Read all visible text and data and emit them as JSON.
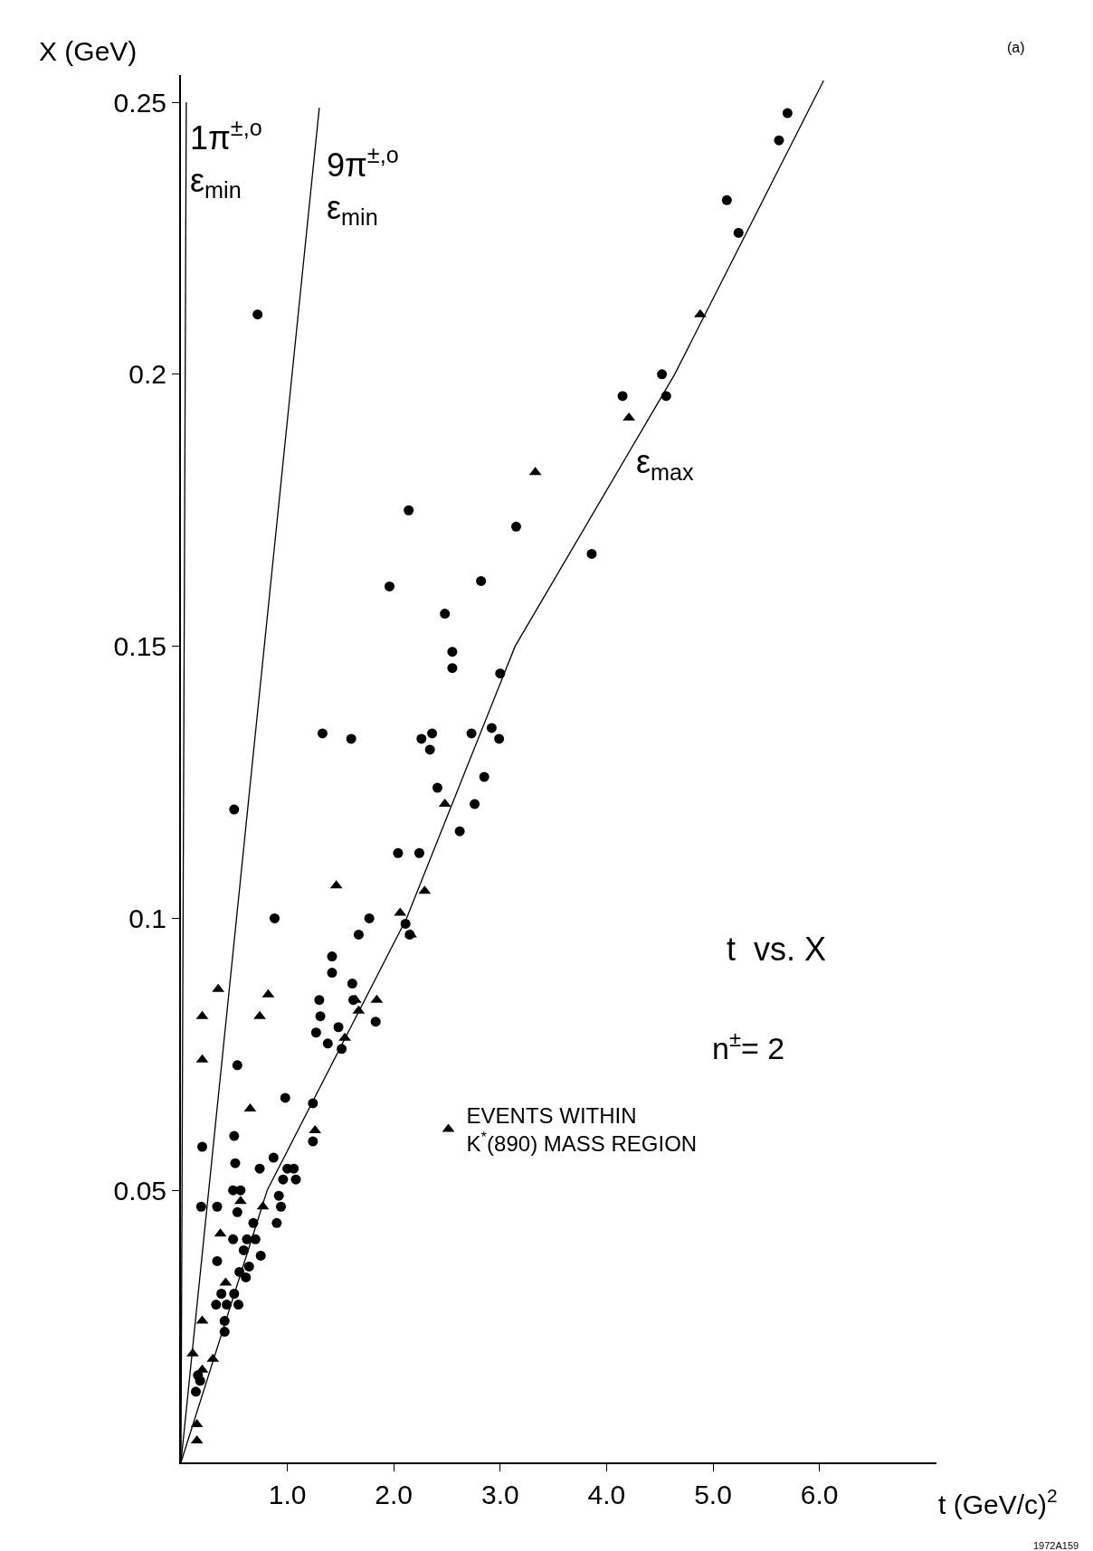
{
  "chart_data": {
    "type": "scatter",
    "xlabel": "t (GeV/c)$^{2}$",
    "ylabel": "X (GeV)",
    "xlim": [
      0,
      7.1
    ],
    "ylim": [
      0,
      0.255
    ],
    "xticks": [
      {
        "value": 1,
        "label": "1.0"
      },
      {
        "value": 2,
        "label": "2.0"
      },
      {
        "value": 3,
        "label": "3.0"
      },
      {
        "value": 4,
        "label": "4.0"
      },
      {
        "value": 5,
        "label": "5.0"
      },
      {
        "value": 6,
        "label": "6.0"
      }
    ],
    "yticks": [
      0.05,
      0.1,
      0.15,
      0.2,
      0.25
    ],
    "legend": "right",
    "series": [
      {
        "marker": "circle",
        "color": "#000000",
        "x": [
          5.24,
          5.13,
          5.7,
          5.62,
          4.15,
          4.52,
          4.56,
          3.86,
          3.15,
          2.14,
          1.96,
          2.82,
          2.48,
          2.55,
          2.55,
          3.0,
          1.33,
          1.6,
          2.26,
          2.34,
          2.36,
          2.73,
          2.92,
          2.99,
          2.41,
          2.85,
          2.76,
          2.62,
          2.04,
          2.24,
          0.72,
          0.5,
          0.88,
          1.77,
          1.67,
          2.11,
          2.15,
          1.42,
          1.42,
          1.3,
          1.31,
          1.61,
          1.62,
          1.48,
          1.27,
          1.83,
          1.38,
          1.51,
          0.98,
          0.53,
          0.2,
          0.34,
          0.19,
          0.5,
          0.51,
          0.74,
          0.87,
          1.0,
          1.06,
          0.96,
          0.92,
          1.08,
          0.94,
          0.9,
          1.24,
          1.24,
          0.49,
          0.56,
          0.53,
          0.49,
          0.62,
          0.68,
          0.59,
          0.7,
          0.75,
          0.64,
          0.55,
          0.61,
          0.34,
          0.38,
          0.33,
          0.43,
          0.41,
          0.41,
          0.5,
          0.54,
          0.16,
          0.14,
          0.18
        ],
        "values": [
          0.226,
          0.232,
          0.248,
          0.243,
          0.196,
          0.2,
          0.196,
          0.167,
          0.172,
          0.175,
          0.161,
          0.162,
          0.156,
          0.149,
          0.146,
          0.145,
          0.134,
          0.133,
          0.133,
          0.131,
          0.134,
          0.134,
          0.135,
          0.133,
          0.124,
          0.126,
          0.121,
          0.116,
          0.112,
          0.112,
          0.211,
          0.12,
          0.1,
          0.1,
          0.097,
          0.099,
          0.097,
          0.093,
          0.09,
          0.085,
          0.082,
          0.088,
          0.085,
          0.08,
          0.079,
          0.081,
          0.077,
          0.076,
          0.067,
          0.073,
          0.058,
          0.047,
          0.047,
          0.06,
          0.055,
          0.054,
          0.056,
          0.054,
          0.054,
          0.052,
          0.049,
          0.052,
          0.047,
          0.044,
          0.059,
          0.066,
          0.05,
          0.05,
          0.046,
          0.041,
          0.041,
          0.044,
          0.039,
          0.041,
          0.038,
          0.036,
          0.035,
          0.034,
          0.037,
          0.031,
          0.029,
          0.029,
          0.026,
          0.024,
          0.031,
          0.029,
          0.016,
          0.013,
          0.015
        ]
      },
      {
        "name": "EVENTS WITHIN\nK$^{*}$(890) MASS REGION",
        "marker": "triangle",
        "color": "#000000",
        "x": [
          0.2,
          0.2,
          0.35,
          0.82,
          0.74,
          0.65,
          1.46,
          2.06,
          2.16,
          2.29,
          2.48,
          3.33,
          4.21,
          4.88,
          0.56,
          0.77,
          0.37,
          0.42,
          0.2,
          0.11,
          0.2,
          0.3,
          0.15,
          0.15,
          1.54,
          1.67,
          1.64,
          1.84,
          1.26
        ],
        "values": [
          0.082,
          0.074,
          0.087,
          0.086,
          0.082,
          0.065,
          0.106,
          0.101,
          0.097,
          0.105,
          0.121,
          0.182,
          0.192,
          0.211,
          0.048,
          0.047,
          0.042,
          0.033,
          0.026,
          0.02,
          0.017,
          0.019,
          0.007,
          0.004,
          0.078,
          0.083,
          0.085,
          0.085,
          0.061
        ]
      },
      {
        "type": "line",
        "marker": "none",
        "line_style": "solid",
        "color": "#000000",
        "x": [
          0,
          0.05
        ],
        "values": [
          0,
          0.25
        ]
      },
      {
        "type": "line",
        "marker": "none",
        "line_style": "solid",
        "color": "#000000",
        "x": [
          0,
          1.3
        ],
        "values": [
          0,
          0.249
        ]
      },
      {
        "type": "line",
        "marker": "none",
        "line_style": "solid",
        "color": "#000000",
        "x": [
          0,
          0.81,
          2.12,
          3.14,
          4.64,
          6.04
        ],
        "values": [
          0,
          0.05,
          0.1,
          0.15,
          0.2,
          0.254
        ]
      }
    ],
    "annotations": [
      "1π$^{±,o}$\nε$_{min}$",
      "9π$^{±,o}$\nε$_{min}$",
      "ε$_{max}$",
      "t  vs. X",
      "n$^{±}$= 2",
      "(a)",
      "1972A159"
    ]
  }
}
